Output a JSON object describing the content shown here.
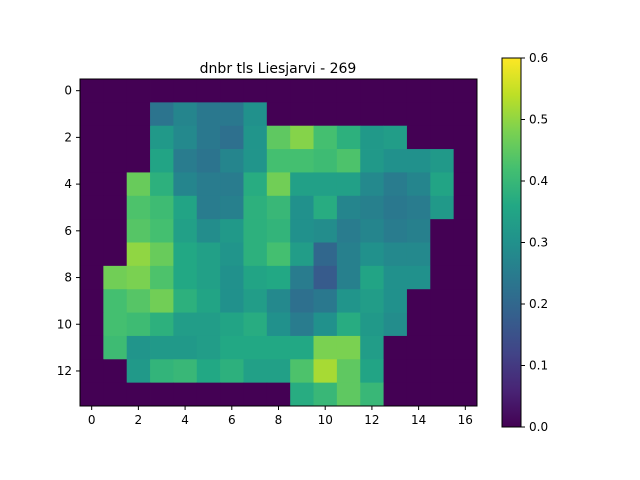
{
  "chart_data": {
    "type": "heatmap",
    "title": "dnbr tls Liesjarvi - 269",
    "xlabel": "",
    "ylabel": "",
    "colormap": "viridis",
    "xlim": [
      -0.5,
      16.5
    ],
    "ylim": [
      13.5,
      -0.5
    ],
    "x_ticks": [
      0,
      2,
      4,
      6,
      8,
      10,
      12,
      14,
      16
    ],
    "y_ticks": [
      0,
      2,
      4,
      6,
      8,
      10,
      12
    ],
    "colorbar": {
      "range": [
        0.0,
        0.6
      ],
      "ticks": [
        0.0,
        0.1,
        0.2,
        0.3,
        0.4,
        0.5,
        0.6
      ],
      "tick_labels": [
        "0.0",
        "0.1",
        "0.2",
        "0.3",
        "0.4",
        "0.5",
        "0.6"
      ]
    },
    "grid": false,
    "values": [
      [
        0,
        0,
        0,
        0,
        0,
        0,
        0,
        0,
        0,
        0,
        0,
        0,
        0,
        0,
        0,
        0,
        0
      ],
      [
        0,
        0,
        0,
        0.23,
        0.27,
        0.24,
        0.24,
        0.3,
        0,
        0,
        0,
        0,
        0,
        0,
        0,
        0,
        0
      ],
      [
        0,
        0,
        0,
        0.32,
        0.28,
        0.24,
        0.22,
        0.31,
        0.45,
        0.49,
        0.42,
        0.38,
        0.32,
        0.33,
        0,
        0,
        0
      ],
      [
        0,
        0,
        0,
        0.35,
        0.25,
        0.23,
        0.27,
        0.31,
        0.42,
        0.42,
        0.41,
        0.43,
        0.32,
        0.3,
        0.3,
        0.32,
        0
      ],
      [
        0,
        0,
        0.46,
        0.38,
        0.27,
        0.25,
        0.25,
        0.37,
        0.47,
        0.34,
        0.34,
        0.34,
        0.28,
        0.25,
        0.27,
        0.35,
        0
      ],
      [
        0,
        0,
        0.43,
        0.41,
        0.35,
        0.25,
        0.26,
        0.38,
        0.4,
        0.3,
        0.37,
        0.27,
        0.26,
        0.24,
        0.25,
        0.32,
        0
      ],
      [
        0,
        0,
        0.44,
        0.42,
        0.34,
        0.29,
        0.32,
        0.38,
        0.39,
        0.3,
        0.29,
        0.25,
        0.27,
        0.25,
        0.26,
        0,
        0
      ],
      [
        0,
        0,
        0.5,
        0.46,
        0.36,
        0.34,
        0.31,
        0.38,
        0.42,
        0.33,
        0.2,
        0.26,
        0.3,
        0.28,
        0.28,
        0,
        0
      ],
      [
        0,
        0.47,
        0.48,
        0.43,
        0.36,
        0.34,
        0.3,
        0.35,
        0.36,
        0.25,
        0.17,
        0.26,
        0.35,
        0.3,
        0.3,
        0,
        0
      ],
      [
        0,
        0.42,
        0.44,
        0.47,
        0.38,
        0.35,
        0.3,
        0.33,
        0.28,
        0.22,
        0.24,
        0.31,
        0.33,
        0.3,
        0,
        0,
        0
      ],
      [
        0,
        0.42,
        0.41,
        0.38,
        0.33,
        0.33,
        0.35,
        0.37,
        0.3,
        0.25,
        0.3,
        0.37,
        0.32,
        0.29,
        0,
        0,
        0
      ],
      [
        0,
        0.41,
        0.31,
        0.32,
        0.32,
        0.33,
        0.36,
        0.36,
        0.36,
        0.36,
        0.48,
        0.48,
        0.33,
        0,
        0,
        0,
        0
      ],
      [
        0,
        0,
        0.32,
        0.39,
        0.4,
        0.36,
        0.38,
        0.34,
        0.34,
        0.43,
        0.52,
        0.45,
        0.35,
        0,
        0,
        0,
        0
      ],
      [
        0,
        0,
        0,
        0,
        0,
        0,
        0,
        0,
        0,
        0.37,
        0.4,
        0.45,
        0.4,
        0,
        0,
        0,
        0
      ]
    ]
  }
}
